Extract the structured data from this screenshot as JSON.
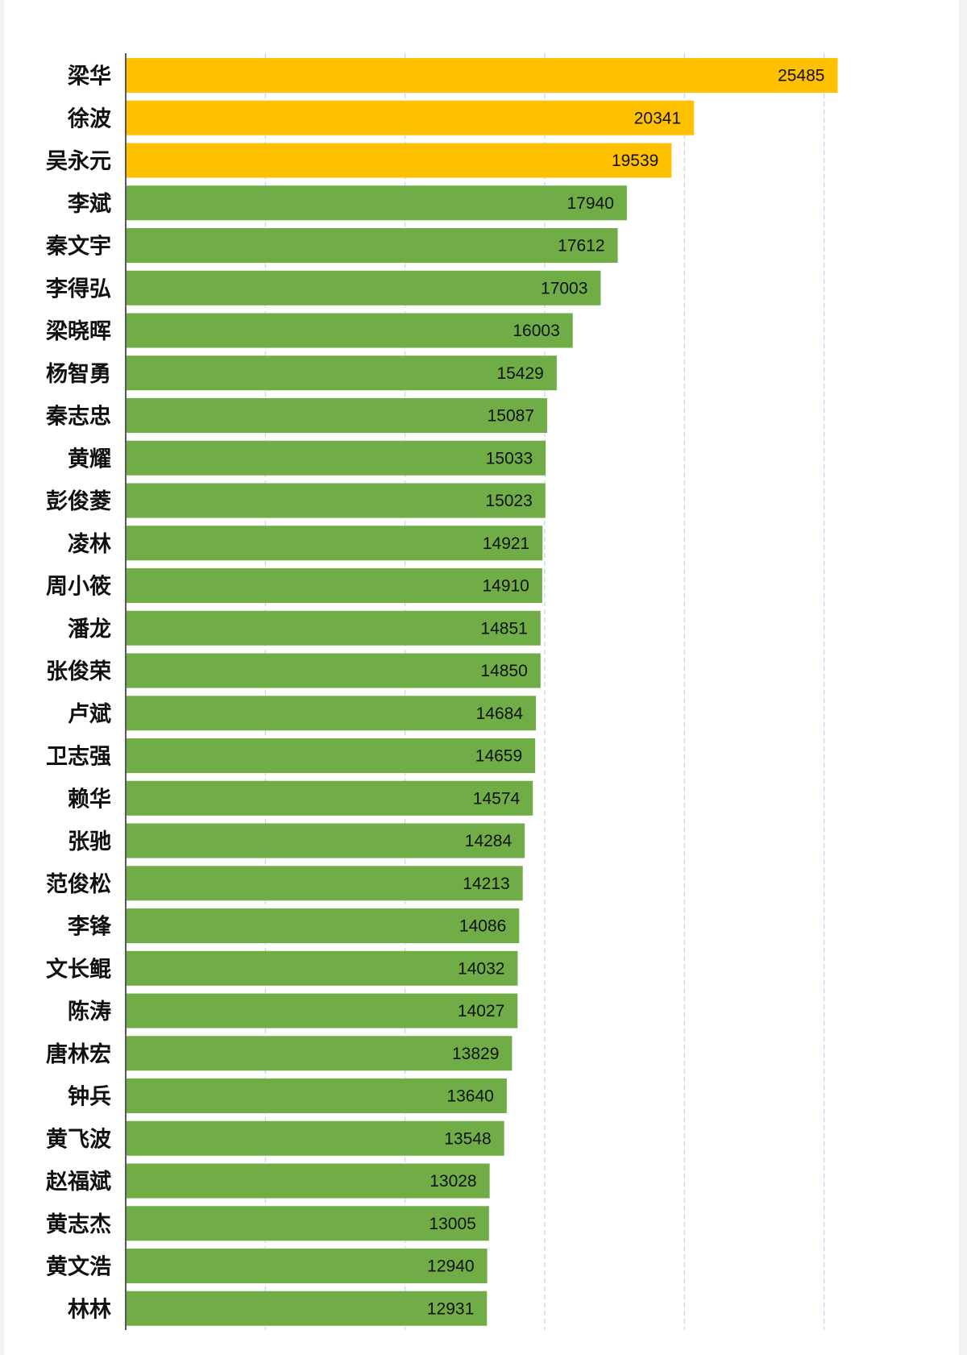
{
  "chart_data": {
    "type": "bar",
    "orientation": "horizontal",
    "title": "",
    "xlabel": "",
    "ylabel": "",
    "xlim": [
      0,
      30000
    ],
    "grid": "vertical dashed",
    "legend": "none",
    "categories": [
      "梁华",
      "徐波",
      "吴永元",
      "李斌",
      "秦文宇",
      "李得弘",
      "梁晓晖",
      "杨智勇",
      "秦志忠",
      "黄耀",
      "彭俊菱",
      "凌林",
      "周小筱",
      "潘龙",
      "张俊荣",
      "卢斌",
      "卫志强",
      "赖华",
      "张驰",
      "范俊松",
      "李锋",
      "文长鲲",
      "陈涛",
      "唐林宏",
      "钟兵",
      "黄飞波",
      "赵福斌",
      "黄志杰",
      "黄文浩",
      "林林"
    ],
    "values": [
      25485,
      20341,
      19539,
      17940,
      17612,
      17003,
      16003,
      15429,
      15087,
      15033,
      15023,
      14921,
      14910,
      14851,
      14850,
      14684,
      14659,
      14574,
      14284,
      14213,
      14086,
      14032,
      14027,
      13829,
      13640,
      13548,
      13028,
      13005,
      12940,
      12931
    ],
    "highlight_count": 3,
    "colors": {
      "highlight": "#ffc000",
      "default": "#70ad47",
      "axis": "#595959",
      "grid": "#bdd7ee"
    }
  }
}
